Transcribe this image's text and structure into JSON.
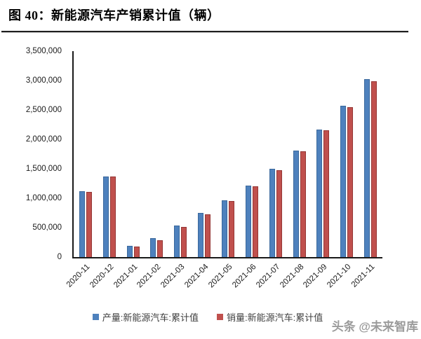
{
  "header": {
    "title": "图 40：新能源汽车产销累计值（辆）"
  },
  "chart_data": {
    "type": "bar",
    "title": "新能源汽车产销累计值（辆）",
    "categories": [
      "2020-11",
      "2020-12",
      "2021-01",
      "2021-02",
      "2021-03",
      "2021-04",
      "2021-05",
      "2021-06",
      "2021-07",
      "2021-08",
      "2021-09",
      "2021-10",
      "2021-11"
    ],
    "series": [
      {
        "name": "产量:新能源汽车:累计值",
        "key": "production",
        "color": "#4E81BD",
        "border_color": "#3A689C",
        "values": [
          1114000,
          1366000,
          194000,
          317000,
          533000,
          750000,
          967000,
          1215000,
          1504000,
          1813000,
          2166000,
          2566000,
          3023000
        ]
      },
      {
        "name": "销量:新能源汽车:累计值",
        "key": "sales",
        "color": "#C0504D",
        "border_color": "#953735",
        "values": [
          1109000,
          1367000,
          179000,
          289000,
          515000,
          732000,
          950000,
          1206000,
          1478000,
          1799000,
          2157000,
          2547000,
          2990000
        ]
      }
    ],
    "xlabel": "",
    "ylabel": "",
    "ylim": [
      0,
      3500000
    ],
    "ytick_step": 500000,
    "grid": false,
    "legend_position": "bottom"
  },
  "footer": {
    "watermark": "头条 @未来智库"
  }
}
